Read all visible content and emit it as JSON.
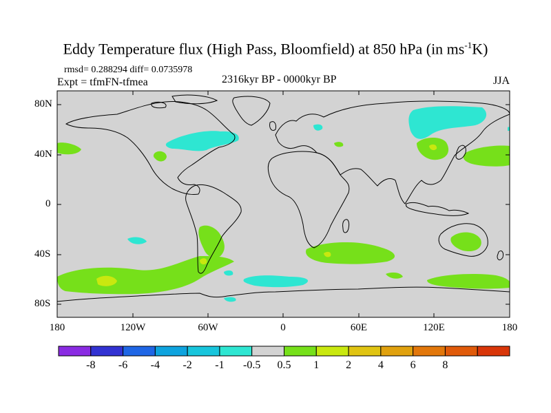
{
  "title_main": "Eddy Temperature flux (High Pass, Bloomfield) at 850 hPa (in ms",
  "title_sup": "-1",
  "title_end": "K)",
  "stats": "rmsd= 0.288294 diff= 0.0735978",
  "experiment": "Expt = tfmFN-tfmea",
  "period": "2316kyr BP - 0000kyr BP",
  "season": "JJA",
  "lat_ticks": [
    "80N",
    "40N",
    "0",
    "40S",
    "80S"
  ],
  "lon_ticks": [
    "180",
    "120W",
    "60W",
    "0",
    "60E",
    "120E",
    "180"
  ],
  "colorbar": {
    "colors": [
      "#8a2be2",
      "#3232d2",
      "#1f66e5",
      "#0ea3de",
      "#18c5dc",
      "#2ee6d2",
      "#d3d3d3",
      "#76e01a",
      "#c9e80f",
      "#e0c412",
      "#e0a10e",
      "#e2770b",
      "#e05a0a",
      "#d93609"
    ],
    "labels": [
      "-8",
      "-6",
      "-4",
      "-2",
      "-1",
      "-0.5",
      "0.5",
      "1",
      "2",
      "4",
      "6",
      "8"
    ]
  },
  "colors": {
    "land_background": "#d3d3d3",
    "coast": "#000000"
  }
}
